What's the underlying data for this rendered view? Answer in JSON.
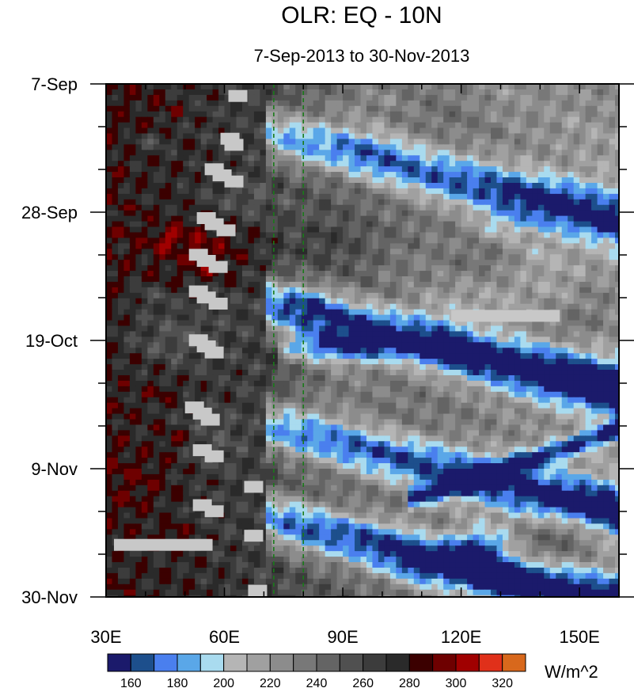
{
  "chart_data": {
    "type": "heatmap",
    "title": "OLR: EQ - 10N",
    "subtitle": "7-Sep-2013 to 30-Nov-2013",
    "units": "W/m^2",
    "x": {
      "tick_labels": [
        "30E",
        "60E",
        "90E",
        "120E",
        "150E"
      ],
      "tick_values": [
        30,
        60,
        90,
        120,
        150
      ],
      "range": [
        30,
        160
      ]
    },
    "y": {
      "tick_labels": [
        "7-Sep",
        "28-Sep",
        "19-Oct",
        "9-Nov",
        "30-Nov"
      ],
      "tick_values": [
        0,
        21,
        42,
        63,
        84
      ],
      "range": [
        0,
        84
      ]
    },
    "reference_lines_lon": [
      72.5,
      80
    ],
    "colorbar": {
      "labels": [
        "160",
        "180",
        "200",
        "220",
        "240",
        "260",
        "280",
        "300",
        "320"
      ],
      "levels": [
        160,
        170,
        180,
        190,
        200,
        210,
        220,
        230,
        240,
        250,
        260,
        270,
        280,
        290,
        300,
        310,
        320
      ],
      "colors": [
        "#1b1a6b",
        "#1d4f8c",
        "#4a7fee",
        "#5aa7e8",
        "#a9dbef",
        "#b5b5b5",
        "#a0a0a0",
        "#8c8c8c",
        "#787878",
        "#646464",
        "#505050",
        "#3c3c3c",
        "#2a2a2a",
        "#3b0000",
        "#6e0000",
        "#a00000",
        "#e0301a",
        "#d8681c"
      ]
    },
    "missing_color": "#c8c8c8"
  }
}
